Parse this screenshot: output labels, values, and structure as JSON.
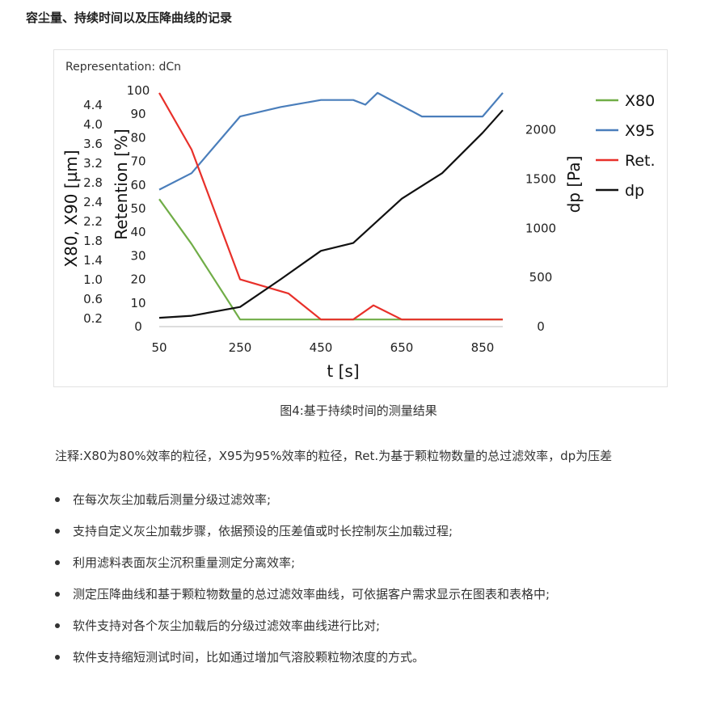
{
  "header": {
    "title": "容尘量、持续时间以及压降曲线的记录"
  },
  "chart_data": {
    "type": "line",
    "representation": "Representation: dCn",
    "xlabel": "t [s]",
    "x_ticks": [
      50,
      250,
      450,
      650,
      850
    ],
    "xlim": [
      50,
      900
    ],
    "y_left_outer": {
      "label": "X80, X90 [µm]",
      "ticks": [
        "0.2",
        "0.6",
        "1.0",
        "1.4",
        "1.8",
        "2.2",
        "2.4",
        "2.8",
        "3.2",
        "3.6",
        "4.0",
        "4.4"
      ]
    },
    "y_left": {
      "label": "Retention [%]",
      "ticks": [
        0,
        10,
        20,
        30,
        40,
        50,
        60,
        70,
        80,
        90,
        100
      ],
      "ylim": [
        0,
        100
      ]
    },
    "y_right": {
      "label": "dp [Pa]",
      "ticks": [
        0,
        500,
        1000,
        1500,
        2000
      ],
      "ylim": [
        0,
        2400
      ]
    },
    "legend_position": "right",
    "series": [
      {
        "name": "X80",
        "color": "#70ad47",
        "axis": "y_left",
        "x": [
          50,
          130,
          250,
          350,
          450,
          530,
          560,
          650,
          750,
          850,
          900
        ],
        "y": [
          54,
          35,
          3,
          3,
          3,
          3,
          3,
          3,
          3,
          3,
          3
        ]
      },
      {
        "name": "X95",
        "color": "#4a7ebb",
        "axis": "y_left",
        "x": [
          50,
          130,
          250,
          350,
          450,
          530,
          560,
          590,
          700,
          800,
          850,
          900
        ],
        "y": [
          58,
          65,
          89,
          93,
          96,
          96,
          94,
          99,
          89,
          89,
          89,
          99
        ]
      },
      {
        "name": "Ret.",
        "color": "#e8302a",
        "axis": "y_left",
        "x": [
          50,
          130,
          250,
          370,
          450,
          530,
          580,
          650,
          750,
          850,
          900
        ],
        "y": [
          99,
          75,
          20,
          14,
          3,
          3,
          9,
          3,
          3,
          3,
          3
        ]
      },
      {
        "name": "dp",
        "color": "#111111",
        "axis": "y_right",
        "x": [
          50,
          130,
          250,
          350,
          450,
          530,
          650,
          750,
          850,
          900
        ],
        "y": [
          90,
          110,
          200,
          480,
          770,
          850,
          1300,
          1560,
          1970,
          2200
        ]
      }
    ]
  },
  "caption": "图4:基于持续时间的测量结果",
  "note": "注释:X80为80%效率的粒径，X95为95%效率的粒径，Ret.为基于颗粒物数量的总过滤效率，dp为压差",
  "bullets": [
    "在每次灰尘加载后测量分级过滤效率;",
    "支持自定义灰尘加载步骤，依据预设的压差值或时长控制灰尘加载过程;",
    "利用滤料表面灰尘沉积重量测定分离效率;",
    "测定压降曲线和基于颗粒物数量的总过滤效率曲线，可依据客户需求显示在图表和表格中;",
    "软件支持对各个灰尘加载后的分级过滤效率曲线进行比对;",
    "软件支持缩短测试时间，比如通过增加气溶胶颗粒物浓度的方式。"
  ]
}
